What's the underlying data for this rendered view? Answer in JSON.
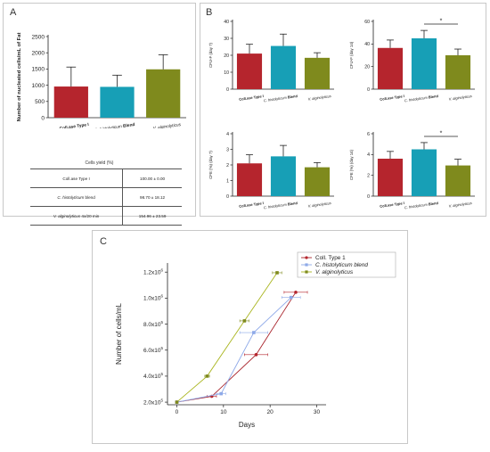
{
  "panels": {
    "a": {
      "letter": "A"
    },
    "b": {
      "letter": "B"
    },
    "c": {
      "letter": "C"
    }
  },
  "colors": {
    "collagenase": "#b5252d",
    "histolyticum": "#179fb6",
    "alginolyticus": "#7f8a1d",
    "line_collagenase": "#a8222a",
    "line_histolyticum": "#8ea9e8",
    "line_alginolyticus": "#a9b51e"
  },
  "yield_table": {
    "title": "Cells yield (%)",
    "rows": [
      {
        "label_main": "Coll.ase Type I",
        "label_italic": "",
        "label_suffix": "",
        "value": "100.00 ± 0.00"
      },
      {
        "label_main": "",
        "label_italic": "C. histolyticum",
        "label_suffix": " blend",
        "value": "98.70 ± 18.12"
      },
      {
        "label_main": "",
        "label_italic": "V. alginolyticus",
        "label_suffix": " 4x/20 min",
        "value": "154.96 ± 23.59"
      }
    ]
  },
  "chart_data": [
    {
      "id": "A",
      "type": "bar",
      "categories": [
        "Coll.ase Type I",
        "C. histolyticum Blend",
        "V. alginolyticus"
      ],
      "values": [
        960,
        950,
        1490
      ],
      "errors": [
        600,
        360,
        450
      ],
      "ylabel": "Number of nucleated cells/mL of Fat",
      "ylim": [
        0,
        2500
      ],
      "yticks": [
        0,
        500,
        1000,
        1500,
        2000,
        2500
      ]
    },
    {
      "id": "B1",
      "type": "bar",
      "categories": [
        "Coll.ase Type I",
        "C. histolyticum Blend",
        "V. alginolyticus"
      ],
      "values": [
        21,
        25.5,
        18.5
      ],
      "errors": [
        5.5,
        7,
        3
      ],
      "ylabel": "CFU-F (day 7)",
      "ylim": [
        0,
        40
      ],
      "yticks": [
        0,
        10,
        20,
        30,
        40
      ],
      "significance": null
    },
    {
      "id": "B2",
      "type": "bar",
      "categories": [
        "Coll.ase Type I",
        "C. histolyticum Blend",
        "V. alginolyticus"
      ],
      "values": [
        36.5,
        45,
        30
      ],
      "errors": [
        7,
        7,
        5.5
      ],
      "ylabel": "CFU-F (day 14)",
      "ylim": [
        0,
        60
      ],
      "yticks": [
        0,
        20,
        40,
        60
      ],
      "significance": {
        "from": 1,
        "to": 2,
        "label": "*"
      }
    },
    {
      "id": "B3",
      "type": "bar",
      "categories": [
        "Coll.ase Type I",
        "C. histolyticum Blend",
        "V. alginolyticus"
      ],
      "values": [
        2.1,
        2.55,
        1.85
      ],
      "errors": [
        0.55,
        0.7,
        0.3
      ],
      "ylabel": "CFE (%) (day 7)",
      "ylim": [
        0,
        4
      ],
      "yticks": [
        0,
        1,
        2,
        3,
        4
      ],
      "significance": null
    },
    {
      "id": "B4",
      "type": "bar",
      "categories": [
        "Coll.ase Type I",
        "C. histolyticum Blend",
        "V. alginolyticus"
      ],
      "values": [
        3.6,
        4.5,
        2.95
      ],
      "errors": [
        0.7,
        0.65,
        0.6
      ],
      "ylabel": "CFE (%) (day 14)",
      "ylim": [
        0,
        6
      ],
      "yticks": [
        0,
        2,
        4,
        6
      ],
      "significance": {
        "from": 1,
        "to": 2,
        "label": "*"
      }
    },
    {
      "id": "C",
      "type": "line",
      "xlabel": "Days",
      "ylabel": "Number of cells/mL",
      "xlim": [
        -2,
        32
      ],
      "xticks": [
        0,
        10,
        20,
        30
      ],
      "ylim": [
        180000,
        1270000
      ],
      "yticks": [
        200000,
        400000,
        600000,
        800000,
        1000000,
        1200000
      ],
      "ytick_labels": [
        {
          "base": "2.0x10",
          "exp": "5"
        },
        {
          "base": "4.0x10",
          "exp": "5"
        },
        {
          "base": "6.0x10",
          "exp": "5"
        },
        {
          "base": "8.0x10",
          "exp": "5"
        },
        {
          "base": "1.0x10",
          "exp": "6"
        },
        {
          "base": "1.2x10",
          "exp": "6"
        }
      ],
      "legend_position": "top-right",
      "series": [
        {
          "name": "Coll. Type 1",
          "italic": false,
          "marker": "circle",
          "x": [
            0,
            7.5,
            17,
            25.5
          ],
          "y": [
            200000,
            245000,
            565000,
            1045000
          ],
          "xerr": [
            0,
            1,
            2.5,
            2.5
          ]
        },
        {
          "name": "C. histolyticum blend",
          "italic": true,
          "marker": "square",
          "x": [
            0,
            9.5,
            16.5,
            24.5
          ],
          "y": [
            200000,
            265000,
            735000,
            1005000
          ],
          "xerr": [
            0,
            1,
            3,
            2
          ]
        },
        {
          "name": "V. alginolyticus",
          "italic": true,
          "marker": "square",
          "x": [
            0,
            6.5,
            14.5,
            21.5
          ],
          "y": [
            200000,
            400000,
            825000,
            1195000
          ],
          "xerr": [
            0,
            0.5,
            1,
            1
          ]
        }
      ]
    }
  ]
}
